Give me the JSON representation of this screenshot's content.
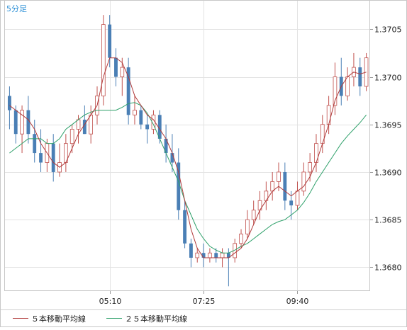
{
  "timeframe_label": "5分足",
  "colors": {
    "up": "#c0504d",
    "down": "#4a7fb5",
    "ma5": "#b03a3a",
    "ma25": "#2ea06a",
    "grid": "#e3e3e3",
    "label": "#2b8fd6"
  },
  "chart_data": {
    "type": "candlestick",
    "x_ticks": [
      "05:10",
      "07:25",
      "09:40"
    ],
    "y_ticks": [
      "1.3705",
      "1.3700",
      "1.3695",
      "1.3690",
      "1.3685",
      "1.3680"
    ],
    "ylim": [
      1.36775,
      1.3708
    ],
    "grid": true,
    "legend": [
      {
        "name": "５本移動平均線",
        "color": "#b03a3a"
      },
      {
        "name": "２５本移動平均線",
        "color": "#2ea06a"
      }
    ],
    "ohlc": [
      [
        1.3698,
        1.3699,
        1.36945,
        1.36965
      ],
      [
        1.36965,
        1.3697,
        1.3693,
        1.3694
      ],
      [
        1.3694,
        1.3697,
        1.3692,
        1.36965
      ],
      [
        1.36965,
        1.3698,
        1.3693,
        1.3694
      ],
      [
        1.3694,
        1.36955,
        1.3691,
        1.3692
      ],
      [
        1.3692,
        1.36945,
        1.369,
        1.3691
      ],
      [
        1.3691,
        1.36935,
        1.369,
        1.3693
      ],
      [
        1.3693,
        1.3694,
        1.3689,
        1.369
      ],
      [
        1.369,
        1.3693,
        1.36895,
        1.3691
      ],
      [
        1.3691,
        1.3694,
        1.369,
        1.3693
      ],
      [
        1.3693,
        1.3695,
        1.3692,
        1.36945
      ],
      [
        1.36945,
        1.3696,
        1.3693,
        1.36955
      ],
      [
        1.36955,
        1.3697,
        1.3694,
        1.3694
      ],
      [
        1.3694,
        1.3697,
        1.3693,
        1.3696
      ],
      [
        1.3696,
        1.3699,
        1.3695,
        1.3698
      ],
      [
        1.3698,
        1.37065,
        1.3697,
        1.37055
      ],
      [
        1.37055,
        1.37065,
        1.3701,
        1.3702
      ],
      [
        1.3702,
        1.3703,
        1.3699,
        1.37
      ],
      [
        1.37,
        1.3702,
        1.3698,
        1.3701
      ],
      [
        1.3701,
        1.3702,
        1.3695,
        1.3696
      ],
      [
        1.3696,
        1.3698,
        1.3695,
        1.36965
      ],
      [
        1.36965,
        1.3697,
        1.36945,
        1.3695
      ],
      [
        1.3695,
        1.3696,
        1.3693,
        1.36945
      ],
      [
        1.36945,
        1.36965,
        1.3694,
        1.3696
      ],
      [
        1.3696,
        1.36965,
        1.3693,
        1.36935
      ],
      [
        1.36935,
        1.3695,
        1.3691,
        1.3692
      ],
      [
        1.3692,
        1.3694,
        1.369,
        1.3691
      ],
      [
        1.3691,
        1.36925,
        1.3685,
        1.3686
      ],
      [
        1.3686,
        1.3687,
        1.3682,
        1.36825
      ],
      [
        1.36825,
        1.3683,
        1.368,
        1.3681
      ],
      [
        1.3681,
        1.3682,
        1.36805,
        1.36815
      ],
      [
        1.36815,
        1.36825,
        1.368,
        1.3681
      ],
      [
        1.3681,
        1.3682,
        1.36805,
        1.36815
      ],
      [
        1.36815,
        1.3682,
        1.36805,
        1.3681
      ],
      [
        1.3681,
        1.3682,
        1.368,
        1.36815
      ],
      [
        1.36815,
        1.3682,
        1.3678,
        1.3681
      ],
      [
        1.3681,
        1.3683,
        1.36805,
        1.36825
      ],
      [
        1.36825,
        1.3684,
        1.3682,
        1.36835
      ],
      [
        1.36835,
        1.3686,
        1.3683,
        1.3685
      ],
      [
        1.3685,
        1.3687,
        1.36845,
        1.3686
      ],
      [
        1.3686,
        1.3688,
        1.3685,
        1.3687
      ],
      [
        1.3687,
        1.3689,
        1.3686,
        1.3688
      ],
      [
        1.3688,
        1.369,
        1.3687,
        1.3689
      ],
      [
        1.3689,
        1.3691,
        1.3688,
        1.369
      ],
      [
        1.369,
        1.3691,
        1.3686,
        1.3687
      ],
      [
        1.3687,
        1.3688,
        1.3685,
        1.36865
      ],
      [
        1.36865,
        1.3689,
        1.3686,
        1.3688
      ],
      [
        1.3688,
        1.3691,
        1.36875,
        1.369
      ],
      [
        1.369,
        1.3692,
        1.3689,
        1.3691
      ],
      [
        1.3691,
        1.3694,
        1.369,
        1.3693
      ],
      [
        1.3693,
        1.3696,
        1.3692,
        1.3695
      ],
      [
        1.3695,
        1.3698,
        1.3694,
        1.3697
      ],
      [
        1.3697,
        1.37015,
        1.3696,
        1.37
      ],
      [
        1.37,
        1.3702,
        1.3697,
        1.3698
      ],
      [
        1.3698,
        1.3701,
        1.36975,
        1.37
      ],
      [
        1.37,
        1.37025,
        1.3699,
        1.3701
      ],
      [
        1.3701,
        1.3702,
        1.3698,
        1.3699
      ],
      [
        1.3699,
        1.37025,
        1.36985,
        1.3702
      ]
    ],
    "ma5": [
      1.3697,
      1.36965,
      1.3696,
      1.36955,
      1.36945,
      1.3693,
      1.3692,
      1.3691,
      1.36905,
      1.3691,
      1.36925,
      1.3694,
      1.3695,
      1.3696,
      1.3697,
      1.37,
      1.3702,
      1.3702,
      1.37015,
      1.37,
      1.3698,
      1.3697,
      1.3696,
      1.36955,
      1.36945,
      1.36935,
      1.3692,
      1.369,
      1.3687,
      1.3684,
      1.3682,
      1.3681,
      1.3681,
      1.3681,
      1.3681,
      1.3681,
      1.36815,
      1.3682,
      1.3683,
      1.36845,
      1.3686,
      1.3687,
      1.3688,
      1.36885,
      1.3688,
      1.36875,
      1.3688,
      1.36885,
      1.36895,
      1.3691,
      1.3693,
      1.3695,
      1.36975,
      1.3699,
      1.37,
      1.37005,
      1.37003,
      1.37005
    ],
    "ma25": [
      1.3692,
      1.36925,
      1.3693,
      1.36935,
      1.36935,
      1.36935,
      1.3693,
      1.3693,
      1.36935,
      1.36945,
      1.3695,
      1.36955,
      1.3696,
      1.36963,
      1.36965,
      1.36965,
      1.36965,
      1.36965,
      1.36968,
      1.36972,
      1.36973,
      1.3697,
      1.36962,
      1.3695,
      1.36935,
      1.3692,
      1.36905,
      1.3689,
      1.3687,
      1.36855,
      1.3684,
      1.3683,
      1.36822,
      1.36818,
      1.36815,
      1.36815,
      1.36818,
      1.36822,
      1.36825,
      1.3683,
      1.36835,
      1.3684,
      1.36845,
      1.36848,
      1.3685,
      1.36855,
      1.3686,
      1.36868,
      1.36878,
      1.3689,
      1.369,
      1.3691,
      1.3692,
      1.3693,
      1.36938,
      1.36945,
      1.36952,
      1.3696
    ]
  }
}
